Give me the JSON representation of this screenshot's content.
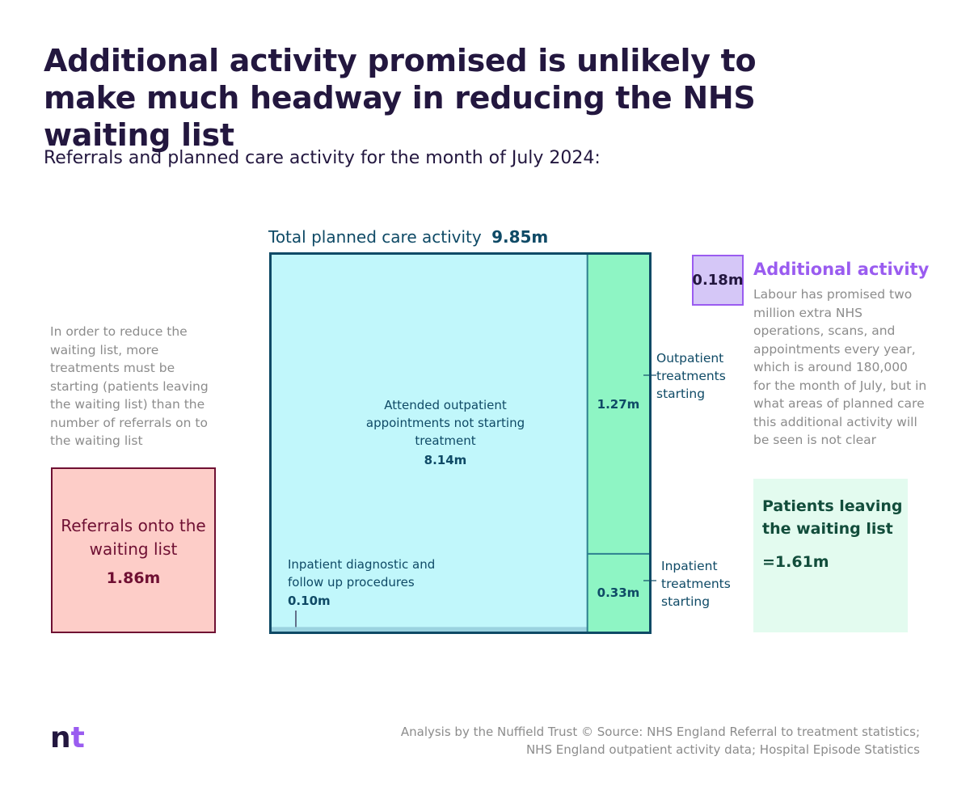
{
  "title": "Additional activity promised is unlikely to make much headway in reducing the NHS waiting list",
  "subtitle": "Referrals and planned care activity for the month of July 2024:",
  "total": {
    "label": "Total planned care activity",
    "value": "9.85m"
  },
  "left_note": "In order to reduce the waiting list, more treatments must be starting (patients leaving the waiting list) than the number of referrals on to the waiting list",
  "referrals": {
    "label": "Referrals onto the waiting list",
    "value": "1.86m"
  },
  "additional": {
    "value": "0.18m",
    "title": "Additional activity",
    "description": "Labour has promised two million extra NHS operations, scans, and appointments every year, which is around 180,000 for the month of July, but in what areas of planned care this additional activity will be seen is not clear"
  },
  "leaving": {
    "title": "Patients leaving the waiting list",
    "value": "=1.61m"
  },
  "source": {
    "line1": "Analysis by the Nuffield Trust © Source: NHS England Referral to treatment statistics;",
    "line2": "NHS England outpatient activity data; Hospital Episode Statistics"
  },
  "logo": {
    "n": "n",
    "t": "t"
  },
  "chart_data": {
    "type": "treemap",
    "title": "Total planned care activity",
    "total": 9.85,
    "unit": "m",
    "segments": [
      {
        "name": "Attended outpatient appointments not starting treatment",
        "value": 8.14,
        "label": "8.14m",
        "color": "#c1f7fb"
      },
      {
        "name": "Inpatient diagnostic and follow up procedures",
        "value": 0.1,
        "label": "0.10m",
        "color": "#9bd3e0"
      },
      {
        "name": "Outpatient treatments starting",
        "value": 1.27,
        "label": "1.27m",
        "color": "#8ef5c4"
      },
      {
        "name": "Inpatient treatments starting",
        "value": 0.33,
        "label": "0.33m",
        "color": "#8ef5c4"
      }
    ],
    "labels": {
      "attended": "Attended outpatient appointments not starting treatment",
      "inpatient_diag": "Inpatient diagnostic and follow up procedures",
      "outpatient_side": "Outpatient treatments starting",
      "inpatient_side": "Inpatient treatments starting"
    }
  }
}
